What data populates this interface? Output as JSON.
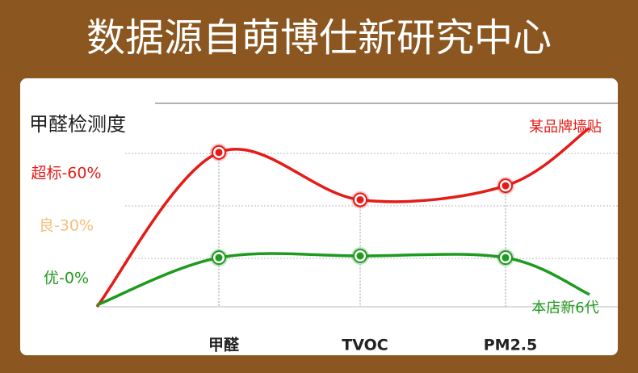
{
  "title": "数据源自萌博仕新研究中心",
  "chart_data": {
    "type": "line",
    "title": "甲醛检测度",
    "categories": [
      null,
      "甲醛",
      "TVOC",
      "PM2.5",
      null
    ],
    "series": [
      {
        "name": "某品牌墙贴",
        "color": "#e41b17",
        "values": [
          -16,
          72,
          45,
          53,
          86
        ]
      },
      {
        "name": "本店新6代",
        "color": "#1e9a1e",
        "values": [
          -15,
          12,
          13,
          12,
          -9
        ]
      }
    ],
    "ylim": [
      -16,
      100
    ],
    "yticks": [
      {
        "value": 60,
        "label": "超标-60%"
      },
      {
        "value": 30,
        "label": "良-30%"
      },
      {
        "value": 0,
        "label": "优-0%"
      }
    ],
    "ytick_colors": [
      "#e41b17",
      "#f3c07a",
      "#1e9a1e"
    ]
  }
}
